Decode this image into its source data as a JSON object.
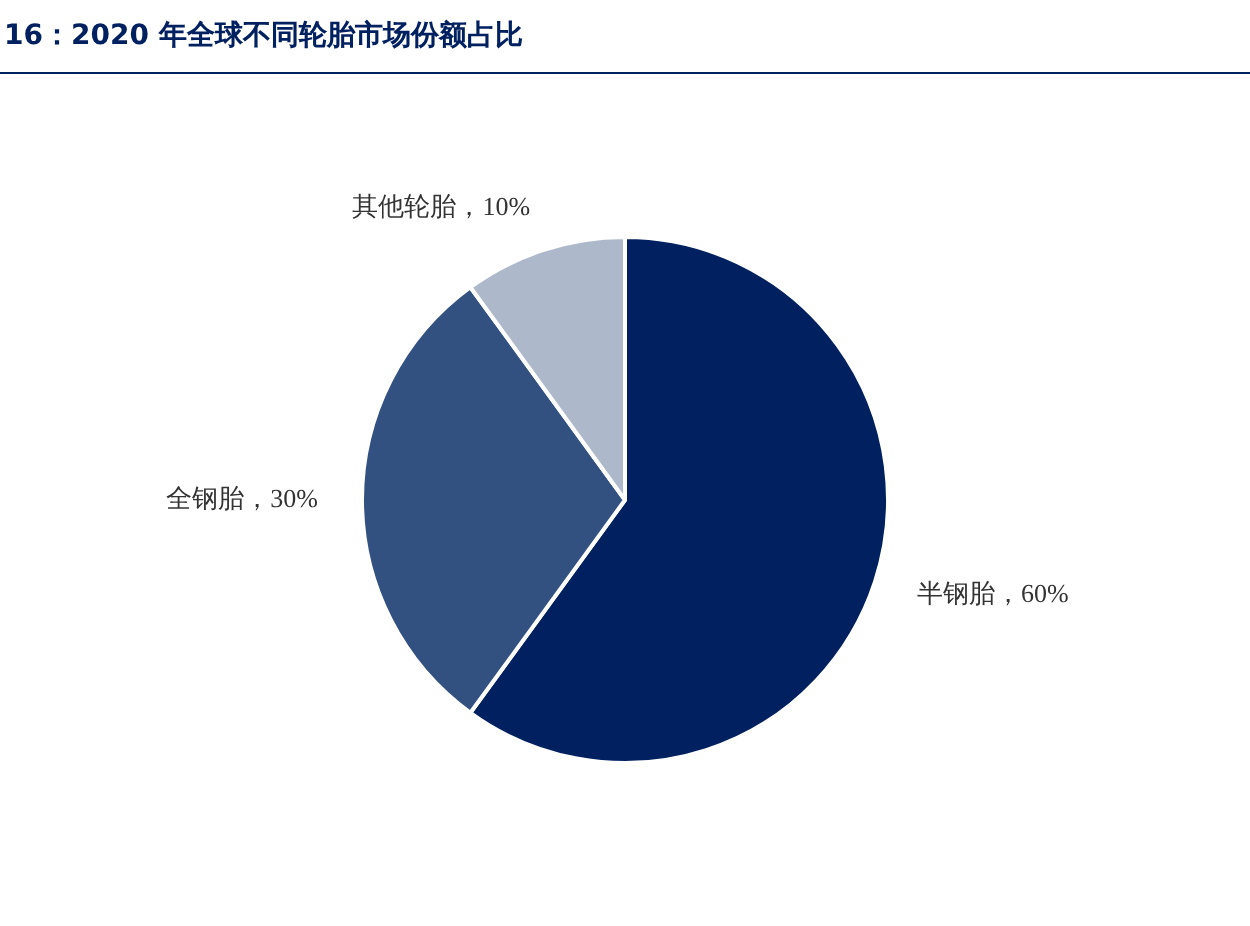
{
  "chart_data": {
    "type": "pie",
    "title": "16：2020 年全球不同轮胎市场份额占比",
    "categories": [
      "半钢胎",
      "全钢胎",
      "其他轮胎"
    ],
    "values": [
      60,
      30,
      10
    ],
    "colors": [
      "#002060",
      "#325080",
      "#adb9ca"
    ],
    "value_labels": [
      "60%",
      "30%",
      "10%"
    ],
    "legend": false
  }
}
